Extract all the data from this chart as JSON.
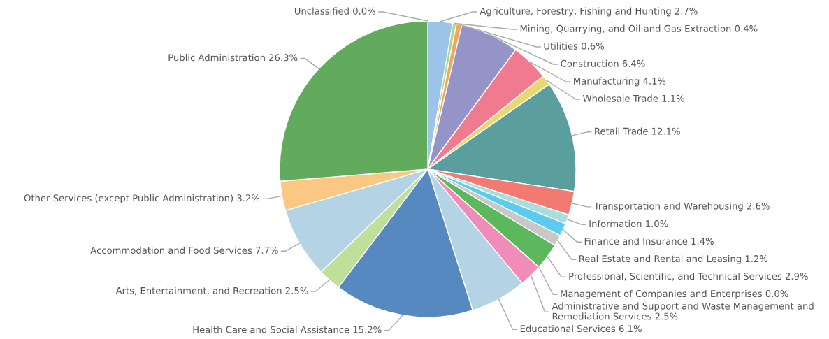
{
  "chart_data": {
    "type": "pie",
    "categories": [
      "Unclassified",
      "Agriculture, Forestry, Fishing and Hunting",
      "Mining, Quarrying, and Oil and Gas Extraction",
      "Utilities",
      "Construction",
      "Manufacturing",
      "Wholesale Trade",
      "Retail Trade",
      "Transportation and Warehousing",
      "Information",
      "Finance and Insurance",
      "Real Estate and Rental and Leasing",
      "Professional, Scientific, and Technical Services",
      "Management of Companies and Enterprises",
      "Administrative and Support and Waste Management and Remediation Services",
      "Educational Services",
      "Health Care and Social Assistance",
      "Arts, Entertainment, and Recreation",
      "Accommodation and Food Services",
      "Other Services (except Public Administration)",
      "Public Administration"
    ],
    "values": [
      0.0,
      2.7,
      0.4,
      0.6,
      6.4,
      4.1,
      1.1,
      12.1,
      2.6,
      1.0,
      1.4,
      1.2,
      2.9,
      0.0,
      2.5,
      6.1,
      15.2,
      2.5,
      7.7,
      3.2,
      26.3
    ],
    "colors": [
      "#c8c8c8",
      "#9cc4e8",
      "#a8d88c",
      "#f7a35c",
      "#9494c8",
      "#f07a90",
      "#e8d870",
      "#5a9e9e",
      "#f27a70",
      "#a8dede",
      "#5ccbf0",
      "#c8c8c8",
      "#5cb85c",
      "#7a7a7a",
      "#f08cb8",
      "#b4d4e6",
      "#5589c0",
      "#bfe09a",
      "#b4d4e6",
      "#fbc883",
      "#62ab5c"
    ],
    "value_labels": [
      "0.0%",
      "2.7%",
      "0.4%",
      "0.6%",
      "6.4%",
      "4.1%",
      "1.1%",
      "12.1%",
      "2.6%",
      "1.0%",
      "1.4%",
      "1.2%",
      "2.9%",
      "0.0%",
      "2.5%",
      "6.1%",
      "15.2%",
      "2.5%",
      "7.7%",
      "3.2%",
      "26.3%"
    ]
  }
}
